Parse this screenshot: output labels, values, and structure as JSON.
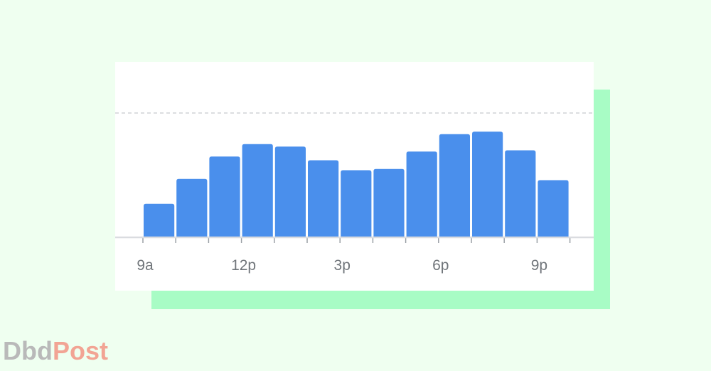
{
  "chart_data": {
    "type": "bar",
    "categories": [
      "9a",
      null,
      null,
      "12p",
      null,
      null,
      "3p",
      null,
      null,
      "6p",
      null,
      null,
      "9p"
    ],
    "values": [
      27,
      47,
      65,
      75,
      73,
      62,
      54,
      55,
      69,
      83,
      85,
      70,
      46
    ],
    "color": "#4a8fec",
    "ylim": [
      0,
      100
    ]
  },
  "watermark": {
    "parts": [
      "Dbd",
      "Post"
    ]
  }
}
